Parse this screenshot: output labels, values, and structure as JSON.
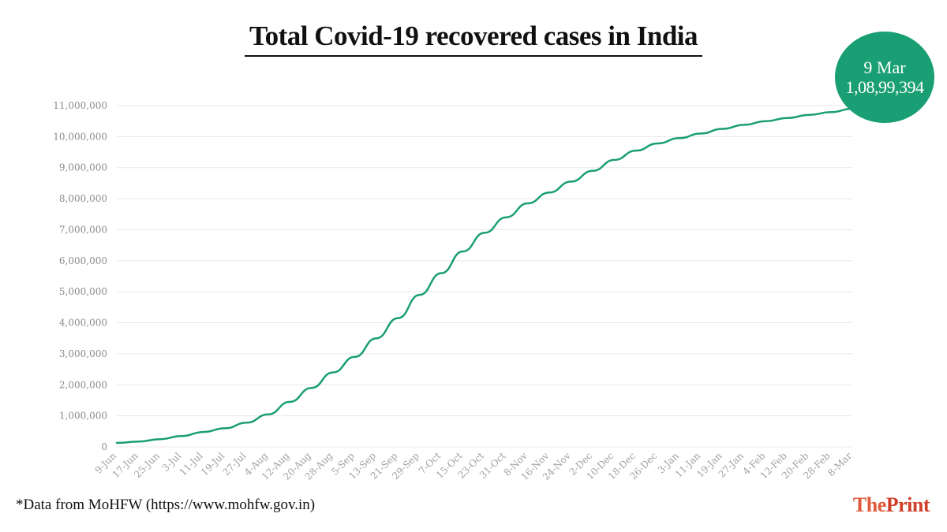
{
  "title": "Total Covid-19 recovered cases in India",
  "callout": {
    "date": "9 Mar",
    "value": "1,08,99,394"
  },
  "source": "*Data from MoHFW (https://www.mohfw.gov.in)",
  "brand": {
    "part1": "The",
    "part2": "Print"
  },
  "colors": {
    "line": "#1a9e73",
    "accent": "#1a9e73",
    "grid": "#e8e8e8"
  },
  "chart_data": {
    "type": "line",
    "title": "Total Covid-19 recovered cases in India",
    "xlabel": "",
    "ylabel": "",
    "ylim": [
      0,
      11000000
    ],
    "grid": true,
    "y_ticks": [
      0,
      1000000,
      2000000,
      3000000,
      4000000,
      5000000,
      6000000,
      7000000,
      8000000,
      9000000,
      10000000,
      11000000
    ],
    "y_tick_labels": [
      "0",
      "1,000,000",
      "2,000,000",
      "3,000,000",
      "4,000,000",
      "5,000,000",
      "6,000,000",
      "7,000,000",
      "8,000,000",
      "9,000,000",
      "10,000,000",
      "11,000,000"
    ],
    "x_tick_labels": [
      "9-Jun",
      "17-Jun",
      "25-Jun",
      "3-Jul",
      "11-Jul",
      "19-Jul",
      "27-Jul",
      "4-Aug",
      "12-Aug",
      "20-Aug",
      "28-Aug",
      "5-Sep",
      "13-Sep",
      "21-Sep",
      "29-Sep",
      "7-Oct",
      "15-Oct",
      "23-Oct",
      "31-Oct",
      "8-Nov",
      "16-Nov",
      "24-Nov",
      "2-Dec",
      "10-Dec",
      "18-Dec",
      "26-Dec",
      "3-Jan",
      "11-Jan",
      "19-Jan",
      "27-Jan",
      "4-Feb",
      "12-Feb",
      "20-Feb",
      "28-Feb",
      "8-Mar"
    ],
    "series": [
      {
        "values": [
          130000,
          170000,
          250000,
          350000,
          480000,
          600000,
          780000,
          1050000,
          1450000,
          1900000,
          2400000,
          2900000,
          3500000,
          4150000,
          4900000,
          5600000,
          6300000,
          6900000,
          7400000,
          7850000,
          8200000,
          8550000,
          8900000,
          9250000,
          9550000,
          9780000,
          9950000,
          10100000,
          10250000,
          10380000,
          10500000,
          10600000,
          10700000,
          10790000,
          10899394
        ]
      }
    ]
  }
}
